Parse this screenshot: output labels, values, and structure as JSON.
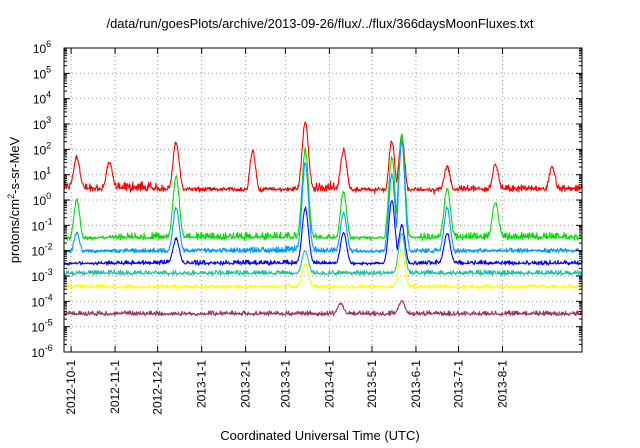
{
  "chart_data": {
    "type": "line",
    "title": "/data/run/goesPlots/archive/2013-09-26/flux/../flux/366daysMoonFluxes.txt",
    "xlabel": "Coordinated Universal Time (UTC)",
    "ylabel_prefix": "protons/cm",
    "ylabel_sup": "2",
    "ylabel_suffix": "-s-sr-MeV",
    "y_scale": "log",
    "ylim_exponents": [
      -6,
      6
    ],
    "y_tick_base": "10",
    "y_tick_exponents": [
      "-6",
      "-5",
      "-4",
      "-3",
      "-2",
      "-1",
      "0",
      "1",
      "2",
      "3",
      "4",
      "5",
      "6"
    ],
    "x_range": [
      "2012-09-26",
      "2013-09-26"
    ],
    "x_ticks": [
      {
        "date": "2012-10-01",
        "label": "2012-10-1"
      },
      {
        "date": "2012-11-01",
        "label": "2012-11-1"
      },
      {
        "date": "2012-12-01",
        "label": "2012-12-1"
      },
      {
        "date": "2013-01-01",
        "label": "2013-1-1"
      },
      {
        "date": "2013-02-01",
        "label": "2013-2-1"
      },
      {
        "date": "2013-03-01",
        "label": "2013-3-1"
      },
      {
        "date": "2013-04-01",
        "label": "2013-4-1"
      },
      {
        "date": "2013-05-01",
        "label": "2013-5-1"
      },
      {
        "date": "2013-06-01",
        "label": "2013-6-1"
      },
      {
        "date": "2013-07-01",
        "label": "2013-7-1"
      },
      {
        "date": "2013-08-01",
        "label": "2013-8-1"
      }
    ],
    "grid": true,
    "series": [
      {
        "color": "#ff0000",
        "noise": 0.3,
        "points": [
          [
            "2012-09-26",
            3
          ],
          [
            "2012-10-20",
            2
          ],
          [
            "2012-11-15",
            3
          ],
          [
            "2012-12-10",
            2
          ],
          [
            "2013-01-10",
            1.5
          ],
          [
            "2013-02-15",
            1.2
          ],
          [
            "2013-03-10",
            2
          ],
          [
            "2013-04-01",
            3
          ],
          [
            "2013-04-20",
            1.2
          ],
          [
            "2013-05-10",
            1
          ],
          [
            "2013-06-10",
            1.5
          ],
          [
            "2013-07-10",
            2
          ],
          [
            "2013-08-10",
            2
          ],
          [
            "2013-09-26",
            2
          ]
        ],
        "spikes": [
          [
            "2012-10-05",
            50
          ],
          [
            "2012-10-28",
            30
          ],
          [
            "2012-12-14",
            200
          ],
          [
            "2013-02-06",
            80
          ],
          [
            "2013-03-15",
            1200
          ],
          [
            "2013-04-11",
            100
          ],
          [
            "2013-05-15",
            200
          ],
          [
            "2013-05-22",
            300
          ],
          [
            "2013-06-23",
            20
          ],
          [
            "2013-07-27",
            25
          ],
          [
            "2013-09-05",
            20
          ]
        ]
      },
      {
        "color": "#00dd00",
        "noise": 0.25,
        "points": [
          [
            "2012-09-26",
            0.015
          ],
          [
            "2012-11-15",
            0.03
          ],
          [
            "2013-01-15",
            0.03
          ],
          [
            "2013-03-10",
            0.03
          ],
          [
            "2013-05-01",
            0.02
          ],
          [
            "2013-06-15",
            0.03
          ],
          [
            "2013-08-01",
            0.03
          ],
          [
            "2013-09-26",
            0.03
          ]
        ],
        "spikes": [
          [
            "2012-10-05",
            1
          ],
          [
            "2012-12-14",
            8
          ],
          [
            "2013-03-15",
            100
          ],
          [
            "2013-04-11",
            2
          ],
          [
            "2013-05-15",
            50
          ],
          [
            "2013-05-22",
            400
          ],
          [
            "2013-06-23",
            3
          ],
          [
            "2013-07-27",
            0.8
          ]
        ]
      },
      {
        "color": "#0099ff",
        "noise": 0.2,
        "points": [
          [
            "2012-09-26",
            0.006
          ],
          [
            "2012-11-15",
            0.008
          ],
          [
            "2013-01-15",
            0.008
          ],
          [
            "2013-03-10",
            0.01
          ],
          [
            "2013-05-01",
            0.007
          ],
          [
            "2013-06-15",
            0.008
          ],
          [
            "2013-08-01",
            0.008
          ],
          [
            "2013-09-26",
            0.008
          ]
        ],
        "spikes": [
          [
            "2012-10-05",
            0.05
          ],
          [
            "2012-12-14",
            0.5
          ],
          [
            "2013-03-15",
            30
          ],
          [
            "2013-04-11",
            0.3
          ],
          [
            "2013-05-15",
            10
          ],
          [
            "2013-05-22",
            200
          ],
          [
            "2013-06-23",
            0.5
          ]
        ]
      },
      {
        "color": "#0000ff",
        "noise": 0.15,
        "points": [
          [
            "2012-09-26",
            0.0025
          ],
          [
            "2012-11-15",
            0.003
          ],
          [
            "2013-01-15",
            0.003
          ],
          [
            "2013-03-10",
            0.003
          ],
          [
            "2013-05-01",
            0.0025
          ],
          [
            "2013-06-15",
            0.003
          ],
          [
            "2013-08-01",
            0.003
          ],
          [
            "2013-09-26",
            0.003
          ]
        ],
        "spikes": [
          [
            "2012-12-14",
            0.03
          ],
          [
            "2013-03-15",
            0.5
          ],
          [
            "2013-04-11",
            0.05
          ],
          [
            "2013-05-15",
            1
          ],
          [
            "2013-05-22",
            0.1
          ],
          [
            "2013-06-23",
            0.05
          ]
        ]
      },
      {
        "color": "#20c0a0",
        "noise": 0.15,
        "points": [
          [
            "2012-09-26",
            0.0012
          ],
          [
            "2012-11-15",
            0.0012
          ],
          [
            "2013-01-15",
            0.0012
          ],
          [
            "2013-03-10",
            0.0012
          ],
          [
            "2013-05-01",
            0.0012
          ],
          [
            "2013-06-15",
            0.0012
          ],
          [
            "2013-08-01",
            0.0012
          ],
          [
            "2013-09-26",
            0.0012
          ]
        ],
        "spikes": [
          [
            "2013-03-15",
            0.01
          ],
          [
            "2013-05-22",
            0.05
          ]
        ]
      },
      {
        "color": "#ffff00",
        "noise": 0.12,
        "points": [
          [
            "2012-09-26",
            0.00035
          ],
          [
            "2012-11-15",
            0.00035
          ],
          [
            "2013-01-15",
            0.00035
          ],
          [
            "2013-03-10",
            0.00035
          ],
          [
            "2013-05-01",
            0.00035
          ],
          [
            "2013-06-15",
            0.00035
          ],
          [
            "2013-08-01",
            0.00035
          ],
          [
            "2013-09-26",
            0.00035
          ]
        ],
        "spikes": [
          [
            "2013-03-15",
            0.003
          ],
          [
            "2013-05-22",
            0.01
          ]
        ]
      },
      {
        "color": "#993366",
        "noise": 0.15,
        "points": [
          [
            "2012-09-26",
            3e-05
          ],
          [
            "2012-11-15",
            3e-05
          ],
          [
            "2013-01-15",
            3e-05
          ],
          [
            "2013-03-10",
            3e-05
          ],
          [
            "2013-05-01",
            3e-05
          ],
          [
            "2013-06-15",
            3e-05
          ],
          [
            "2013-08-01",
            3e-05
          ],
          [
            "2013-09-26",
            3e-05
          ]
        ],
        "spikes": [
          [
            "2013-04-09",
            8e-05
          ],
          [
            "2013-05-22",
            0.0001
          ]
        ]
      }
    ]
  }
}
